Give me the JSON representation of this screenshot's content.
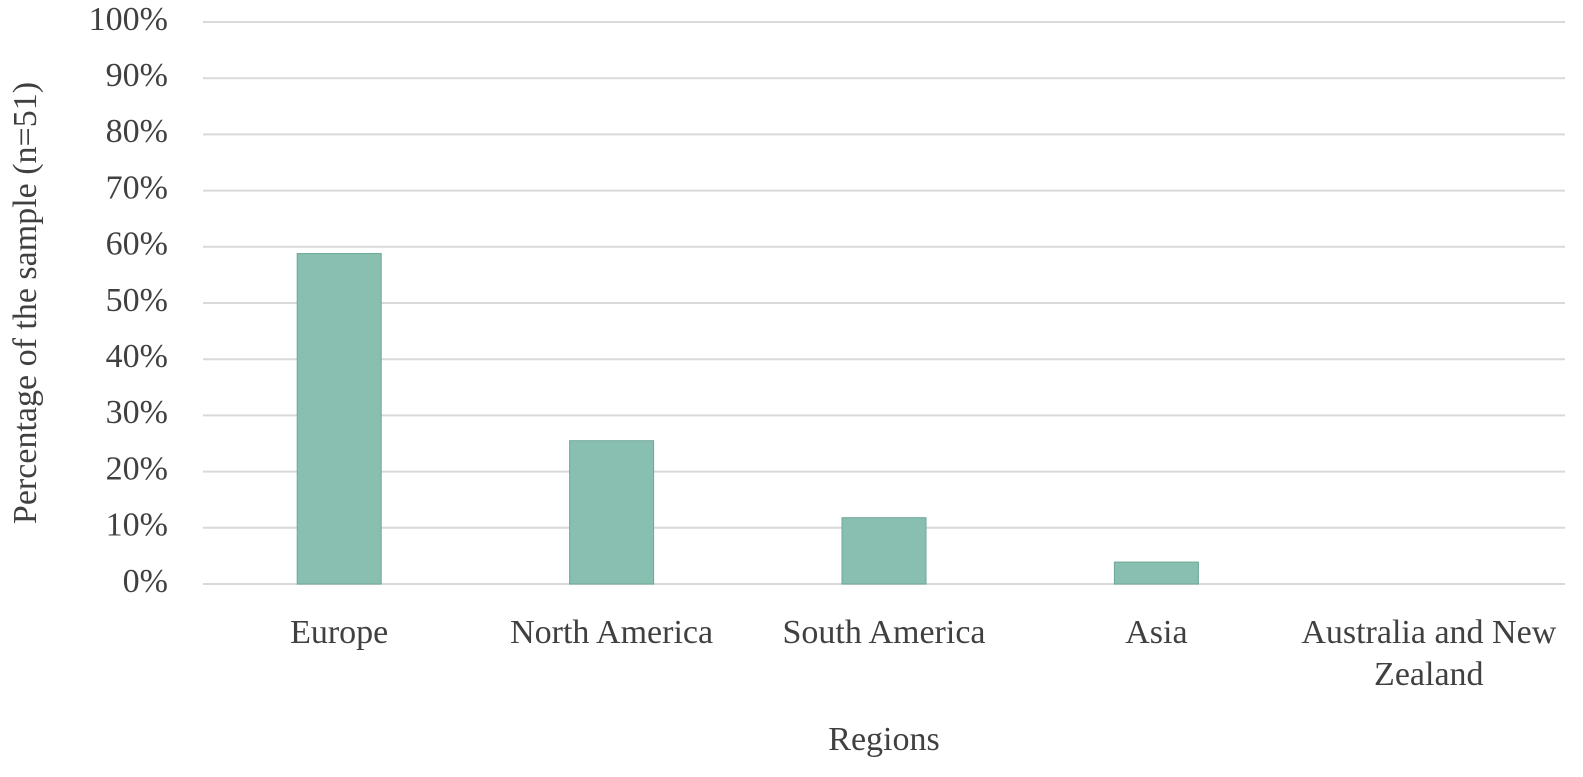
{
  "chart_data": {
    "type": "bar",
    "categories": [
      "Europe",
      "North America",
      "South America",
      "Asia",
      "Australia and New Zealand"
    ],
    "values": [
      58.8,
      25.5,
      11.8,
      3.9,
      0
    ],
    "color": "#88bfb0",
    "x_label": "Regions",
    "y_label": "Percentage of the sample (n=51)",
    "ylim": [
      0,
      100
    ],
    "yticks": [
      {
        "value": 0,
        "label": "0%"
      },
      {
        "value": 10,
        "label": "10%"
      },
      {
        "value": 20,
        "label": "20%"
      },
      {
        "value": 30,
        "label": "30%"
      },
      {
        "value": 40,
        "label": "40%"
      },
      {
        "value": 50,
        "label": "50%"
      },
      {
        "value": 60,
        "label": "60%"
      },
      {
        "value": 70,
        "label": "70%"
      },
      {
        "value": 80,
        "label": "80%"
      },
      {
        "value": 90,
        "label": "90%"
      },
      {
        "value": 100,
        "label": "100%"
      }
    ],
    "grid": true
  }
}
